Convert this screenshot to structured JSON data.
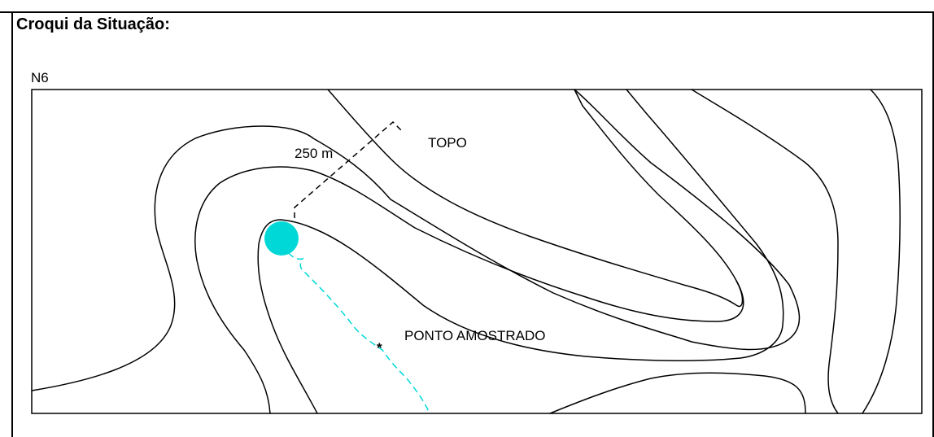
{
  "section": {
    "title": "Croqui da Situação:",
    "map_id": "N6"
  },
  "sketch": {
    "summit_label": "TOPO",
    "distance_label": "250 m",
    "sample_label": "PONTO AMOSTRADO",
    "sample_marker": "*",
    "colors": {
      "contour": "#000000",
      "water": "#00d8d8",
      "frame": "#000000"
    },
    "icons": [
      "spring-icon",
      "sample-point-icon"
    ]
  }
}
